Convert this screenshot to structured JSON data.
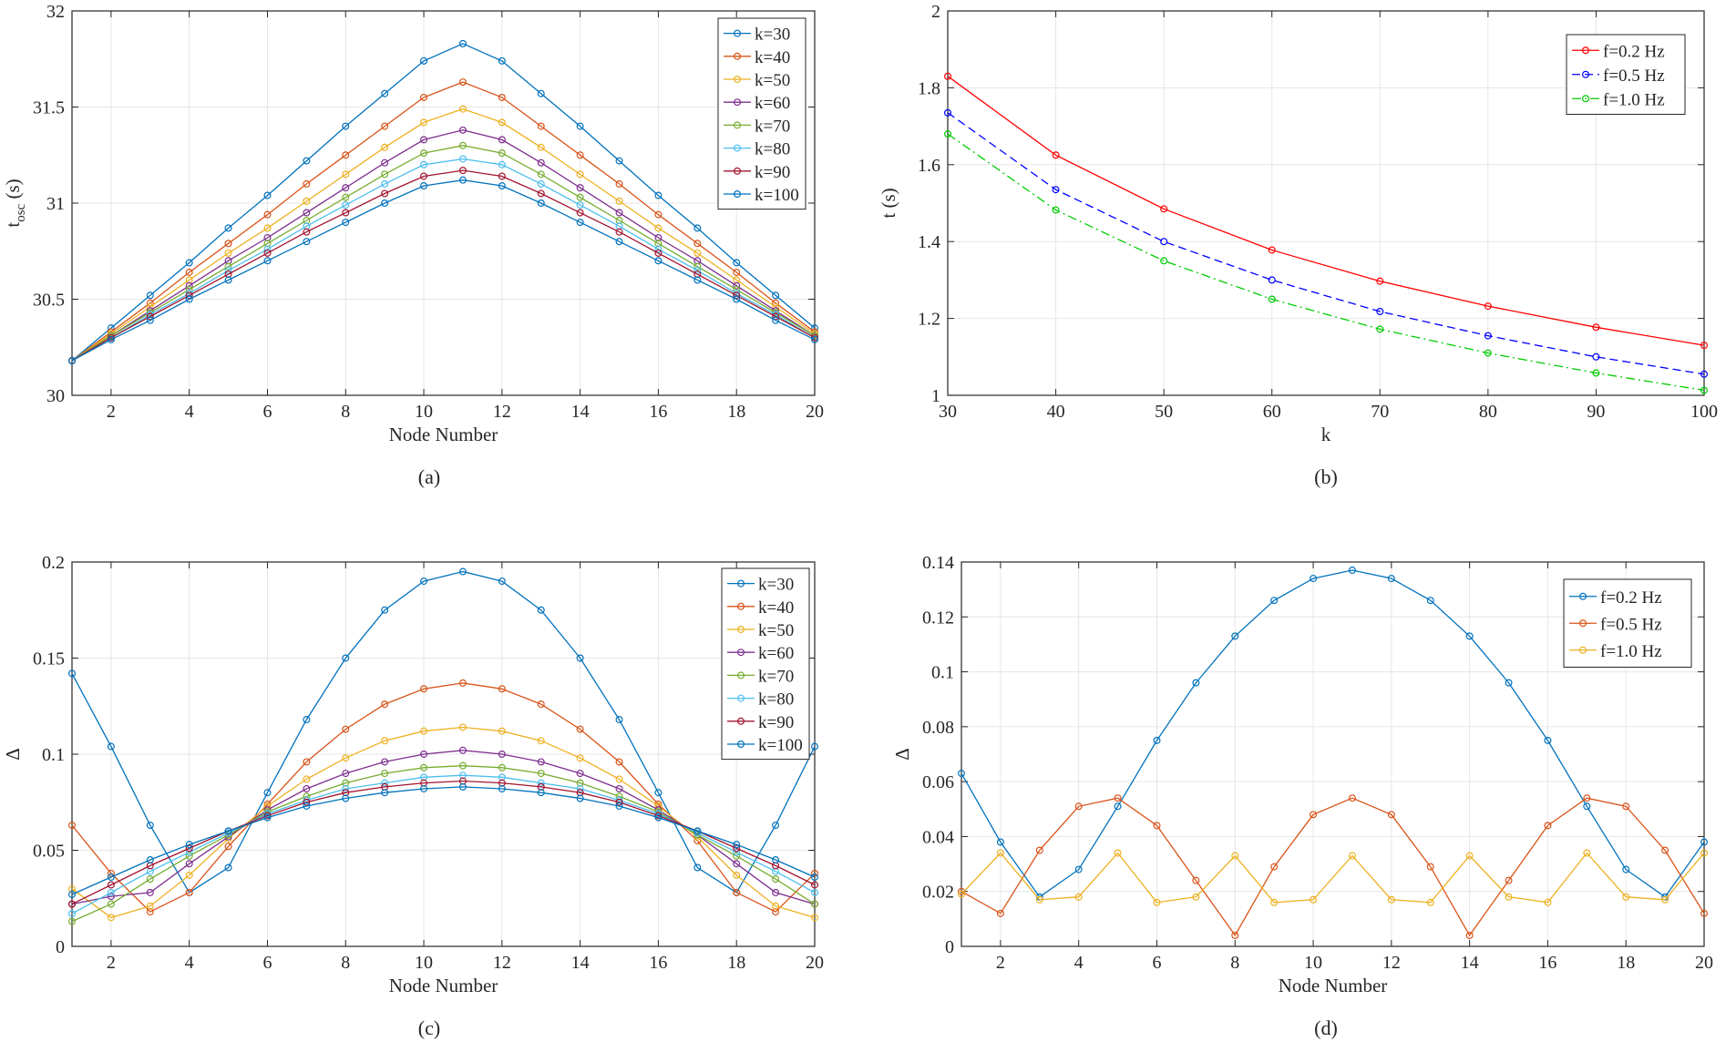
{
  "figure": {
    "captions": [
      "(a)",
      "(b)",
      "(c)",
      "(d)"
    ]
  },
  "chart_data": [
    {
      "type": "line",
      "caption": "(a)",
      "xlabel": "Node Number",
      "ylabel": "t",
      "ylabel_sub": "osc",
      "ylabel_unit": " (s)",
      "xlim": [
        1,
        20
      ],
      "ylim": [
        30,
        32
      ],
      "grid": true,
      "legend": "top-right",
      "xticks": [
        2,
        4,
        6,
        8,
        10,
        12,
        14,
        16,
        18,
        20
      ],
      "yticks": [
        30,
        30.5,
        31,
        31.5,
        32
      ],
      "x": [
        1,
        2,
        3,
        4,
        5,
        6,
        7,
        8,
        9,
        10,
        11,
        12,
        13,
        14,
        15,
        16,
        17,
        18,
        19,
        20
      ],
      "series": [
        {
          "name": "k=30",
          "color": "#0072BD",
          "values": [
            30.18,
            30.35,
            30.52,
            30.69,
            30.87,
            31.04,
            31.22,
            31.4,
            31.57,
            31.74,
            31.83,
            31.74,
            31.57,
            31.4,
            31.22,
            31.04,
            30.87,
            30.69,
            30.52,
            30.35
          ]
        },
        {
          "name": "k=40",
          "color": "#D95319",
          "values": [
            30.18,
            30.33,
            30.48,
            30.64,
            30.79,
            30.94,
            31.1,
            31.25,
            31.4,
            31.55,
            31.63,
            31.55,
            31.4,
            31.25,
            31.1,
            30.94,
            30.79,
            30.64,
            30.48,
            30.33
          ]
        },
        {
          "name": "k=50",
          "color": "#EDB120",
          "values": [
            30.18,
            30.32,
            30.46,
            30.6,
            30.74,
            30.87,
            31.01,
            31.15,
            31.29,
            31.42,
            31.49,
            31.42,
            31.29,
            31.15,
            31.01,
            30.87,
            30.74,
            30.6,
            30.46,
            30.32
          ]
        },
        {
          "name": "k=60",
          "color": "#7E2F8E",
          "values": [
            30.18,
            30.31,
            30.44,
            30.57,
            30.7,
            30.82,
            30.95,
            31.08,
            31.21,
            31.33,
            31.38,
            31.33,
            31.21,
            31.08,
            30.95,
            30.82,
            30.7,
            30.57,
            30.44,
            30.31
          ]
        },
        {
          "name": "k=70",
          "color": "#77AC30",
          "values": [
            30.18,
            30.31,
            30.43,
            30.55,
            30.67,
            30.79,
            30.91,
            31.03,
            31.15,
            31.26,
            31.3,
            31.26,
            31.15,
            31.03,
            30.91,
            30.79,
            30.67,
            30.55,
            30.43,
            30.31
          ]
        },
        {
          "name": "k=80",
          "color": "#4DBEEE",
          "values": [
            30.18,
            30.3,
            30.42,
            30.53,
            30.65,
            30.76,
            30.88,
            30.99,
            31.1,
            31.2,
            31.23,
            31.2,
            31.1,
            30.99,
            30.88,
            30.76,
            30.65,
            30.53,
            30.42,
            30.3
          ]
        },
        {
          "name": "k=90",
          "color": "#A2142F",
          "values": [
            30.18,
            30.3,
            30.41,
            30.52,
            30.63,
            30.74,
            30.85,
            30.95,
            31.05,
            31.14,
            31.17,
            31.14,
            31.05,
            30.95,
            30.85,
            30.74,
            30.63,
            30.52,
            30.41,
            30.3
          ]
        },
        {
          "name": "k=100",
          "color": "#0072BD",
          "values": [
            30.18,
            30.29,
            30.39,
            30.5,
            30.6,
            30.7,
            30.8,
            30.9,
            31.0,
            31.09,
            31.12,
            31.09,
            31.0,
            30.9,
            30.8,
            30.7,
            30.6,
            30.5,
            30.39,
            30.29
          ]
        }
      ]
    },
    {
      "type": "line",
      "caption": "(b)",
      "xlabel": "k",
      "ylabel": "t (s)",
      "xlim": [
        30,
        100
      ],
      "ylim": [
        1,
        2
      ],
      "grid": true,
      "legend": "top-right",
      "xticks": [
        30,
        40,
        50,
        60,
        70,
        80,
        90,
        100
      ],
      "yticks": [
        1,
        1.2,
        1.4,
        1.6,
        1.8,
        2
      ],
      "x": [
        30,
        40,
        50,
        60,
        70,
        80,
        90,
        100
      ],
      "series": [
        {
          "name": "f=0.2 Hz",
          "color": "#FF0000",
          "dash": "solid",
          "values": [
            1.83,
            1.625,
            1.485,
            1.378,
            1.297,
            1.232,
            1.177,
            1.13
          ]
        },
        {
          "name": "f=0.5 Hz",
          "color": "#0000FF",
          "dash": "dashed",
          "values": [
            1.735,
            1.535,
            1.4,
            1.3,
            1.218,
            1.155,
            1.1,
            1.055
          ]
        },
        {
          "name": "f=1.0 Hz",
          "color": "#00CC00",
          "dash": "dashdot",
          "values": [
            1.68,
            1.482,
            1.35,
            1.25,
            1.172,
            1.11,
            1.058,
            1.013
          ]
        }
      ]
    },
    {
      "type": "line",
      "caption": "(c)",
      "xlabel": "Node Number",
      "ylabel": "Δ",
      "xlim": [
        1,
        20
      ],
      "ylim": [
        0,
        0.2
      ],
      "grid": true,
      "legend": "top-right",
      "xticks": [
        2,
        4,
        6,
        8,
        10,
        12,
        14,
        16,
        18,
        20
      ],
      "yticks": [
        0,
        0.05,
        0.1,
        0.15,
        0.2
      ],
      "x": [
        1,
        2,
        3,
        4,
        5,
        6,
        7,
        8,
        9,
        10,
        11,
        12,
        13,
        14,
        15,
        16,
        17,
        18,
        19,
        20
      ],
      "series": [
        {
          "name": "k=30",
          "color": "#0072BD",
          "values": [
            0.142,
            0.104,
            0.063,
            0.028,
            0.041,
            0.08,
            0.118,
            0.15,
            0.175,
            0.19,
            0.195,
            0.19,
            0.175,
            0.15,
            0.118,
            0.08,
            0.041,
            0.028,
            0.063,
            0.104
          ]
        },
        {
          "name": "k=40",
          "color": "#D95319",
          "values": [
            0.063,
            0.038,
            0.018,
            0.028,
            0.052,
            0.074,
            0.096,
            0.113,
            0.126,
            0.134,
            0.137,
            0.134,
            0.126,
            0.113,
            0.096,
            0.074,
            0.055,
            0.028,
            0.018,
            0.038
          ]
        },
        {
          "name": "k=50",
          "color": "#EDB120",
          "values": [
            0.03,
            0.015,
            0.021,
            0.037,
            0.056,
            0.073,
            0.087,
            0.098,
            0.107,
            0.112,
            0.114,
            0.112,
            0.107,
            0.098,
            0.087,
            0.073,
            0.057,
            0.037,
            0.021,
            0.015
          ]
        },
        {
          "name": "k=60",
          "color": "#7E2F8E",
          "values": [
            0.022,
            0.026,
            0.028,
            0.043,
            0.057,
            0.071,
            0.082,
            0.09,
            0.096,
            0.1,
            0.102,
            0.1,
            0.096,
            0.09,
            0.082,
            0.071,
            0.058,
            0.043,
            0.028,
            0.022
          ]
        },
        {
          "name": "k=70",
          "color": "#77AC30",
          "values": [
            0.013,
            0.022,
            0.035,
            0.047,
            0.058,
            0.07,
            0.078,
            0.085,
            0.09,
            0.093,
            0.094,
            0.093,
            0.09,
            0.085,
            0.078,
            0.07,
            0.058,
            0.047,
            0.035,
            0.022
          ]
        },
        {
          "name": "k=80",
          "color": "#4DBEEE",
          "values": [
            0.017,
            0.028,
            0.039,
            0.049,
            0.059,
            0.069,
            0.076,
            0.082,
            0.085,
            0.088,
            0.089,
            0.088,
            0.085,
            0.082,
            0.076,
            0.069,
            0.059,
            0.049,
            0.039,
            0.028
          ]
        },
        {
          "name": "k=90",
          "color": "#A2142F",
          "values": [
            0.022,
            0.032,
            0.042,
            0.051,
            0.06,
            0.068,
            0.075,
            0.08,
            0.083,
            0.085,
            0.086,
            0.085,
            0.083,
            0.08,
            0.075,
            0.068,
            0.06,
            0.051,
            0.042,
            0.032
          ]
        },
        {
          "name": "k=100",
          "color": "#0072BD",
          "values": [
            0.027,
            0.036,
            0.045,
            0.053,
            0.06,
            0.067,
            0.073,
            0.077,
            0.08,
            0.082,
            0.083,
            0.082,
            0.08,
            0.077,
            0.073,
            0.067,
            0.06,
            0.053,
            0.045,
            0.036
          ]
        }
      ]
    },
    {
      "type": "line",
      "caption": "(d)",
      "xlabel": "Node Number",
      "ylabel": "Δ",
      "xlim": [
        1,
        20
      ],
      "ylim": [
        0,
        0.14
      ],
      "grid": true,
      "legend": "top-right",
      "xticks": [
        2,
        4,
        6,
        8,
        10,
        12,
        14,
        16,
        18,
        20
      ],
      "yticks": [
        0,
        0.02,
        0.04,
        0.06,
        0.08,
        0.1,
        0.12,
        0.14
      ],
      "x": [
        1,
        2,
        3,
        4,
        5,
        6,
        7,
        8,
        9,
        10,
        11,
        12,
        13,
        14,
        15,
        16,
        17,
        18,
        19,
        20
      ],
      "series": [
        {
          "name": "f=0.2 Hz",
          "color": "#0072BD",
          "values": [
            0.063,
            0.038,
            0.018,
            0.028,
            0.051,
            0.075,
            0.096,
            0.113,
            0.126,
            0.134,
            0.137,
            0.134,
            0.126,
            0.113,
            0.096,
            0.075,
            0.051,
            0.028,
            0.018,
            0.038
          ]
        },
        {
          "name": "f=0.5 Hz",
          "color": "#D95319",
          "values": [
            0.02,
            0.012,
            0.035,
            0.051,
            0.054,
            0.044,
            0.024,
            0.004,
            0.029,
            0.048,
            0.054,
            0.048,
            0.029,
            0.004,
            0.024,
            0.044,
            0.054,
            0.051,
            0.035,
            0.012
          ]
        },
        {
          "name": "f=1.0 Hz",
          "color": "#EDB120",
          "values": [
            0.019,
            0.034,
            0.017,
            0.018,
            0.034,
            0.016,
            0.018,
            0.033,
            0.016,
            0.017,
            0.033,
            0.017,
            0.016,
            0.033,
            0.018,
            0.016,
            0.034,
            0.018,
            0.017,
            0.034
          ]
        }
      ]
    }
  ]
}
